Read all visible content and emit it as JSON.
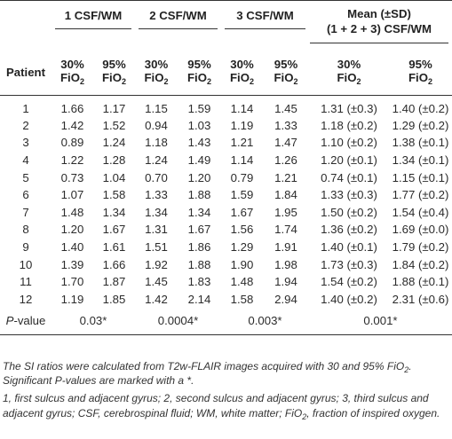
{
  "headers": {
    "group1": "1 CSF/WM",
    "group2": "2 CSF/WM",
    "group3": "3 CSF/WM",
    "group4_line1": "Mean (±SD)",
    "group4_line2": "(1 + 2 + 3) CSF/WM",
    "patient": "Patient",
    "fio2_30_pct": "30%",
    "fio2_95_pct": "95%",
    "fio2_label": "FiO",
    "fio2_sub": "2"
  },
  "rows": [
    {
      "patient": "1",
      "c1_30": "1.66",
      "c1_95": "1.17",
      "c2_30": "1.15",
      "c2_95": "1.59",
      "c3_30": "1.14",
      "c3_95": "1.45",
      "m_30": "1.31 (±0.3)",
      "m_95": "1.40 (±0.2)"
    },
    {
      "patient": "2",
      "c1_30": "1.42",
      "c1_95": "1.52",
      "c2_30": "0.94",
      "c2_95": "1.03",
      "c3_30": "1.19",
      "c3_95": "1.33",
      "m_30": "1.18 (±0.2)",
      "m_95": "1.29 (±0.2)"
    },
    {
      "patient": "3",
      "c1_30": "0.89",
      "c1_95": "1.24",
      "c2_30": "1.18",
      "c2_95": "1.43",
      "c3_30": "1.21",
      "c3_95": "1.47",
      "m_30": "1.10 (±0.2)",
      "m_95": "1.38 (±0.1)"
    },
    {
      "patient": "4",
      "c1_30": "1.22",
      "c1_95": "1.28",
      "c2_30": "1.24",
      "c2_95": "1.49",
      "c3_30": "1.14",
      "c3_95": "1.26",
      "m_30": "1.20 (±0.1)",
      "m_95": "1.34 (±0.1)"
    },
    {
      "patient": "5",
      "c1_30": "0.73",
      "c1_95": "1.04",
      "c2_30": "0.70",
      "c2_95": "1.20",
      "c3_30": "0.79",
      "c3_95": "1.21",
      "m_30": "0.74 (±0.1)",
      "m_95": "1.15 (±0.1)"
    },
    {
      "patient": "6",
      "c1_30": "1.07",
      "c1_95": "1.58",
      "c2_30": "1.33",
      "c2_95": "1.88",
      "c3_30": "1.59",
      "c3_95": "1.84",
      "m_30": "1.33 (±0.3)",
      "m_95": "1.77 (±0.2)"
    },
    {
      "patient": "7",
      "c1_30": "1.48",
      "c1_95": "1.34",
      "c2_30": "1.34",
      "c2_95": "1.34",
      "c3_30": "1.67",
      "c3_95": "1.95",
      "m_30": "1.50 (±0.2)",
      "m_95": "1.54 (±0.4)"
    },
    {
      "patient": "8",
      "c1_30": "1.20",
      "c1_95": "1.67",
      "c2_30": "1.31",
      "c2_95": "1.67",
      "c3_30": "1.56",
      "c3_95": "1.74",
      "m_30": "1.36 (±0.2)",
      "m_95": "1.69 (±0.0)"
    },
    {
      "patient": "9",
      "c1_30": "1.40",
      "c1_95": "1.61",
      "c2_30": "1.51",
      "c2_95": "1.86",
      "c3_30": "1.29",
      "c3_95": "1.91",
      "m_30": "1.40 (±0.1)",
      "m_95": "1.79 (±0.2)"
    },
    {
      "patient": "10",
      "c1_30": "1.39",
      "c1_95": "1.66",
      "c2_30": "1.92",
      "c2_95": "1.88",
      "c3_30": "1.90",
      "c3_95": "1.98",
      "m_30": "1.73 (±0.3)",
      "m_95": "1.84 (±0.2)"
    },
    {
      "patient": "11",
      "c1_30": "1.70",
      "c1_95": "1.87",
      "c2_30": "1.45",
      "c2_95": "1.83",
      "c3_30": "1.48",
      "c3_95": "1.94",
      "m_30": "1.54 (±0.2)",
      "m_95": "1.88 (±0.1)"
    },
    {
      "patient": "12",
      "c1_30": "1.19",
      "c1_95": "1.85",
      "c2_30": "1.42",
      "c2_95": "2.14",
      "c3_30": "1.58",
      "c3_95": "2.94",
      "m_30": "1.40 (±0.2)",
      "m_95": "2.31 (±0.6)"
    }
  ],
  "pvalue": {
    "label": "P",
    "label_suffix": "-value",
    "g1": "0.03*",
    "g2": "0.0004*",
    "g3": "0.003*",
    "g4": "0.001*"
  },
  "footnotes": {
    "note1_a": "The SI ratios were calculated from T2w-FLAIR images acquired with 30 and 95% FiO",
    "note1_sub": "2",
    "note1_b": ".",
    "note2": "Significant P-values are marked with a *.",
    "note3_a": "1, first sulcus and adjacent gyrus; 2, second sulcus and adjacent gyrus; 3, third sulcus and adjacent gyrus; CSF, cerebrospinal fluid; WM, white matter; FiO",
    "note3_sub": "2",
    "note3_b": ", fraction of inspired oxygen."
  }
}
